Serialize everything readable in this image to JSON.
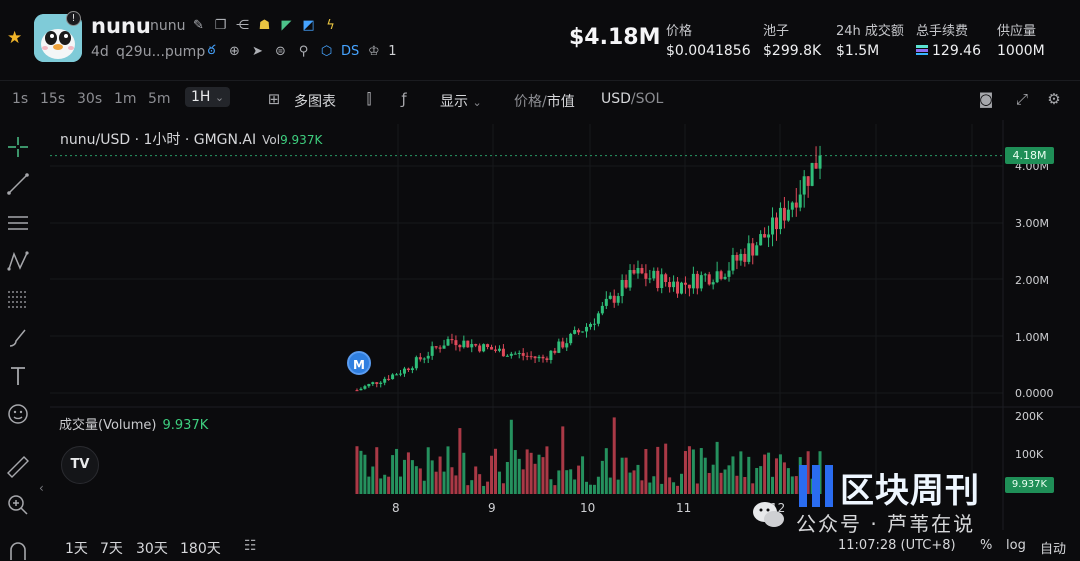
{
  "header": {
    "token_name": "nunu",
    "token_subname": "nunu",
    "info_badge": "!",
    "age": "4d",
    "address": "q29u...pump",
    "ds_label": "DS",
    "ds_count": "1",
    "market_cap": "$4.18M",
    "stats": [
      {
        "label": "价格",
        "value": "$0.0041856"
      },
      {
        "label": "池子",
        "value": "$299.8K"
      },
      {
        "label": "24h 成交额",
        "value": "$1.5M"
      },
      {
        "label": "总手续费",
        "value": "129.46"
      },
      {
        "label": "供应量",
        "value": "1000M"
      }
    ],
    "icons": [
      "edit-icon",
      "copy-icon",
      "share-icon",
      "holders-icon",
      "tag-icon",
      "verified-icon",
      "bolt-icon"
    ]
  },
  "toolbar": {
    "timeframes": [
      "1s",
      "15s",
      "30s",
      "1m",
      "5m"
    ],
    "active_timeframe": "1H",
    "multi_chart": "多图表",
    "display": "显示",
    "price_label": "价格",
    "separator": "/",
    "mcap_label": "市值",
    "usd_label": "USD",
    "sol_label": "/SOL"
  },
  "chart": {
    "legend_title": "nunu/USD · 1小时 · GMGN.AI",
    "vol_label": "Vol",
    "vol_value": "9.937K",
    "volume_label": "成交量(Volume)",
    "volume_value": "9.937K",
    "price_tag": "4.18M",
    "volume_tag": "9.937K",
    "marker": "M",
    "tv_logo": "TV",
    "collapse_glyph": "‹",
    "colors": {
      "up": "#2fbf7a",
      "down": "#e0495a",
      "bg": "#0b0b0d",
      "grid": "#17181c"
    }
  },
  "chart_data": {
    "type": "candlestick",
    "y_ticks": [
      "4.00M",
      "3.00M",
      "2.00M",
      "1.00M",
      "0.0000"
    ],
    "volume_ticks": [
      "200K",
      "100K"
    ],
    "x_ticks": [
      "8",
      "9",
      "10",
      "11",
      "12"
    ],
    "y_unit": "USD market cap",
    "last_value_millions": 4.18,
    "trend_millions": [
      {
        "x": "7 18:00",
        "v": 0.05
      },
      {
        "x": "8 00:00",
        "v": 0.4
      },
      {
        "x": "8 12:00",
        "v": 0.95
      },
      {
        "x": "9 00:00",
        "v": 0.75
      },
      {
        "x": "9 12:00",
        "v": 0.6
      },
      {
        "x": "10 00:00",
        "v": 1.2
      },
      {
        "x": "10 12:00",
        "v": 2.1
      },
      {
        "x": "11 00:00",
        "v": 1.9
      },
      {
        "x": "11 12:00",
        "v": 2.2
      },
      {
        "x": "12 00:00",
        "v": 2.9
      },
      {
        "x": "12 12:00",
        "v": 4.18
      }
    ]
  },
  "bottombar": {
    "ranges": [
      "1天",
      "7天",
      "30天",
      "180天"
    ],
    "time": "11:07:28 (UTC+8)",
    "percent": "%",
    "log": "log",
    "auto": "自动"
  },
  "watermark": {
    "wechat_text": "公众号 · 芦苇在说",
    "brand_text": "区块周刊"
  }
}
